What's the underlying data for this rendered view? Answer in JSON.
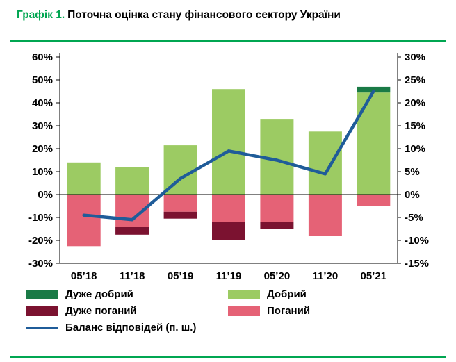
{
  "title": {
    "prefix": "Графік 1.",
    "rest": "Поточна оцінка стану фінансового сектору України"
  },
  "colors": {
    "accent_green": "#00A651",
    "axis_text": "#000000"
  },
  "chart_data": {
    "type": "bar",
    "subtype": "stacked-bars-with-line",
    "categories": [
      "05’18",
      "11’18",
      "05’19",
      "11’19",
      "05’20",
      "11’20",
      "05’21"
    ],
    "series": [
      {
        "key": "very_good",
        "name": "Дуже добрий",
        "color": "#1A7A46",
        "values": [
          0,
          0,
          0,
          0,
          0,
          0,
          2.5
        ]
      },
      {
        "key": "good",
        "name": "Добрий",
        "color": "#9CCB63",
        "values": [
          14,
          12,
          21.5,
          46,
          33,
          27.5,
          44.5
        ]
      },
      {
        "key": "very_bad",
        "name": "Дуже поганий",
        "color": "#7B1230",
        "values": [
          0,
          -3.5,
          -3,
          -8,
          -3,
          0,
          0
        ]
      },
      {
        "key": "bad",
        "name": "Поганий",
        "color": "#E56276",
        "values": [
          -22.5,
          -14,
          -7.5,
          -12,
          -12,
          -18,
          -5
        ]
      }
    ],
    "line": {
      "name": "Баланс відповідей (п. ш.)",
      "color": "#1F5C99",
      "axis": "right",
      "values": [
        -4.5,
        -5.5,
        3.5,
        9.5,
        7.5,
        4.5,
        22.5
      ]
    },
    "left_axis": {
      "min": -30,
      "max": 60,
      "tick_values": [
        60,
        50,
        40,
        30,
        20,
        10,
        0,
        -10,
        -20,
        -30
      ],
      "tick_labels": [
        "60%",
        "50%",
        "40%",
        "30%",
        "20%",
        "10%",
        "0%",
        "-10%",
        "-20%",
        "-30%"
      ]
    },
    "right_axis": {
      "min": -15,
      "max": 30,
      "scale_to_left": 2,
      "tick_values": [
        30,
        25,
        20,
        15,
        10,
        5,
        0,
        -5,
        -10,
        -15
      ],
      "tick_labels": [
        "30%",
        "25%",
        "20%",
        "15%",
        "10%",
        "5%",
        "0%",
        "-5%",
        "-10%",
        "-15%"
      ]
    },
    "grid": false,
    "legend_position": "bottom"
  }
}
